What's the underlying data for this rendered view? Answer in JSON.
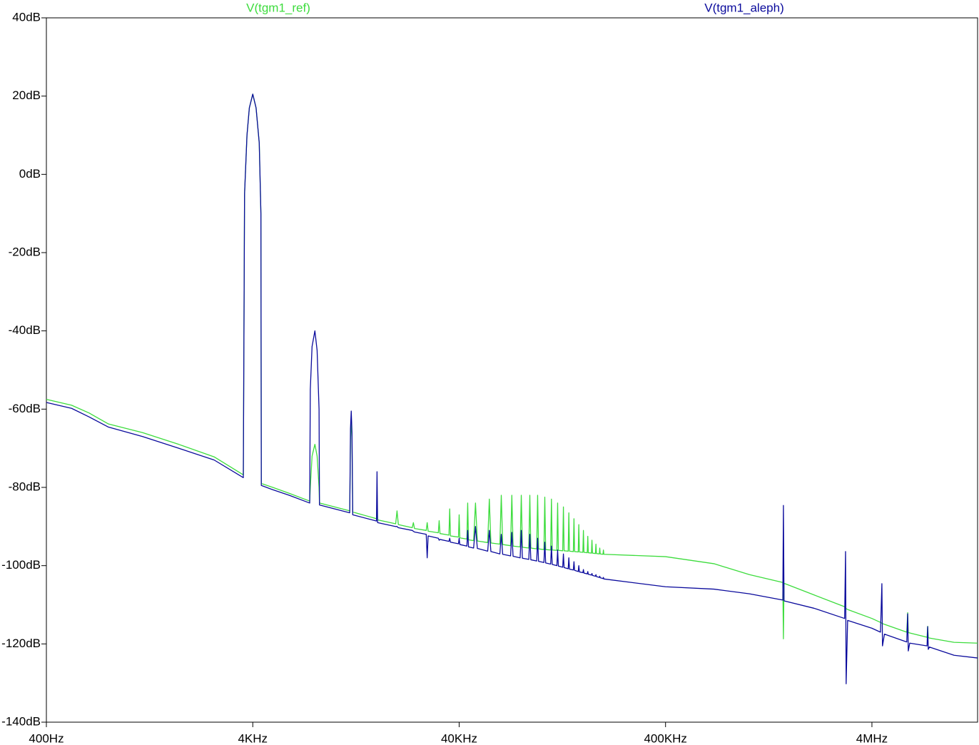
{
  "chart_data": {
    "type": "line",
    "xscale": "log",
    "xlim": [
      400,
      13000000
    ],
    "ylim": [
      -140,
      40
    ],
    "xticks": [
      {
        "value": 400,
        "label": "400Hz"
      },
      {
        "value": 4000,
        "label": "4KHz"
      },
      {
        "value": 40000,
        "label": "40KHz"
      },
      {
        "value": 400000,
        "label": "400KHz"
      },
      {
        "value": 4000000,
        "label": "4MHz"
      }
    ],
    "yticks": [
      {
        "value": 40,
        "label": "40dB"
      },
      {
        "value": 20,
        "label": "20dB"
      },
      {
        "value": 0,
        "label": "0dB"
      },
      {
        "value": -20,
        "label": "-20dB"
      },
      {
        "value": -40,
        "label": "-40dB"
      },
      {
        "value": -60,
        "label": "-60dB"
      },
      {
        "value": -80,
        "label": "-80dB"
      },
      {
        "value": -100,
        "label": "-100dB"
      },
      {
        "value": -120,
        "label": "-120dB"
      },
      {
        "value": -140,
        "label": "-140dB"
      }
    ],
    "grid": false,
    "x": [
      400,
      530,
      645,
      800,
      1170,
      1750,
      2600,
      3600,
      3650,
      3750,
      3850,
      4000,
      4150,
      4300,
      4380,
      4400,
      5000,
      6000,
      7550,
      7600,
      7750,
      8000,
      8200,
      8380,
      8420,
      11800,
      11900,
      12000,
      12100,
      12200,
      15900,
      16000,
      16100,
      19700,
      20000,
      20300,
      23700,
      24000,
      24300,
      27700,
      28000,
      28300,
      31700,
      32000,
      32300,
      35700,
      36000,
      36300,
      39700,
      40000,
      40300,
      43600,
      44000,
      44400,
      47000,
      48000,
      49000,
      55000,
      56000,
      57000,
      63000,
      64000,
      65000,
      71000,
      72000,
      73000,
      79000,
      80000,
      81000,
      87000,
      88000,
      89000,
      95000,
      96000,
      97000,
      103000,
      104000,
      105000,
      111000,
      112000,
      113000,
      119000,
      120000,
      121000,
      127000,
      128000,
      129000,
      135000,
      136000,
      137000,
      143000,
      144000,
      145000,
      151000,
      152000,
      153000,
      159000,
      160000,
      161000,
      167000,
      168000,
      169000,
      175000,
      176000,
      177000,
      183000,
      184000,
      185000,
      191000,
      192000,
      193000,
      199000,
      200000,
      201000,
      400000,
      686000,
      1020000,
      1480000,
      1490000,
      1500000,
      2100000,
      2950000,
      2980000,
      3000000,
      3050000,
      4000000,
      4400000,
      4470000,
      4500000,
      4600000,
      5900000,
      5960000,
      6000000,
      6100000,
      7400000,
      7450000,
      7500000,
      7600000,
      10000000,
      13000000
    ],
    "series": [
      {
        "name": "V(tgm1_ref)",
        "color": "#3ddc3d",
        "values": [
          -57.5,
          -59,
          -61,
          -63.8,
          -66,
          -69,
          -72.2,
          -76.8,
          -5,
          10,
          17,
          20.5,
          17,
          8,
          -10,
          -79,
          -80,
          -81.5,
          -83.5,
          -80,
          -72,
          -69,
          -72,
          -80,
          -84,
          -86,
          -68,
          -62,
          -68,
          -86.3,
          -88,
          -85,
          -88.3,
          -89.3,
          -86,
          -89.5,
          -90.3,
          -89,
          -90.5,
          -91,
          -89,
          -91.2,
          -91.6,
          -88.5,
          -91.8,
          -92.2,
          -85.5,
          -92.4,
          -92.7,
          -87,
          -92.9,
          -93.2,
          -84,
          -93.4,
          -93.6,
          -84,
          -93.7,
          -94.1,
          -83,
          -94.2,
          -94.5,
          -82,
          -94.6,
          -94.9,
          -82,
          -95,
          -95.2,
          -82,
          -95.3,
          -95.5,
          -82,
          -95.5,
          -95.7,
          -82,
          -95.7,
          -95.9,
          -82.5,
          -95.9,
          -96,
          -83,
          -96,
          -96.1,
          -84,
          -96.1,
          -96.2,
          -85,
          -96.2,
          -96.3,
          -86.5,
          -96.3,
          -96.4,
          -88,
          -96.4,
          -96.5,
          -89.5,
          -96.5,
          -96.6,
          -91,
          -96.6,
          -96.7,
          -92.5,
          -96.7,
          -96.8,
          -93.5,
          -96.8,
          -96.9,
          -94.5,
          -96.9,
          -97,
          -95.5,
          -97,
          -97.1,
          -96,
          -97.1,
          -97.7,
          -99.5,
          -102.3,
          -104.3,
          -118.7,
          -104.5,
          -107.5,
          -110.5,
          -111,
          -111,
          -111.2,
          -113.5,
          -114.5,
          -114.7,
          -114.8,
          -115,
          -117,
          -112,
          -117.1,
          -117.2,
          -118.3,
          -115.5,
          -118.4,
          -118.5,
          -119.6,
          -119.8
        ]
      },
      {
        "name": "V(tgm1_aleph)",
        "color": "#0a0a9c",
        "values": [
          -58.3,
          -59.8,
          -62,
          -64.6,
          -67,
          -70,
          -73,
          -77.5,
          -5,
          10,
          17,
          20.5,
          17,
          8,
          -10,
          -79.5,
          -80.6,
          -82,
          -84,
          -55,
          -44,
          -40,
          -45,
          -60,
          -84.5,
          -86.5,
          -65,
          -60.5,
          -66,
          -87,
          -88.6,
          -76,
          -89,
          -90,
          -90,
          -90.3,
          -91,
          -91.2,
          -91.4,
          -92,
          -98,
          -92.4,
          -93,
          -93.5,
          -93.3,
          -93.8,
          -93,
          -94,
          -94.4,
          -93,
          -94.6,
          -95,
          -91,
          -95.2,
          -95.5,
          -90,
          -95.6,
          -96.3,
          -91,
          -96.4,
          -97,
          -92,
          -97.1,
          -97.5,
          -91.5,
          -97.6,
          -98,
          -91,
          -98.1,
          -98.4,
          -92,
          -98.5,
          -98.8,
          -93,
          -98.9,
          -99.2,
          -94,
          -99.3,
          -99.6,
          -95,
          -99.7,
          -100,
          -96,
          -100.1,
          -100.4,
          -97,
          -100.5,
          -100.8,
          -98,
          -100.9,
          -101.1,
          -99,
          -101.2,
          -101.5,
          -100,
          -101.6,
          -101.8,
          -101,
          -101.9,
          -102.1,
          -101.5,
          -102.2,
          -102.4,
          -102,
          -102.5,
          -102.7,
          -102.3,
          -102.8,
          -103,
          -102.7,
          -103.1,
          -103.3,
          -103,
          -103.4,
          -105.4,
          -106,
          -107.2,
          -108.8,
          -84.6,
          -109,
          -110.9,
          -113.5,
          -96.4,
          -130.2,
          -114,
          -116,
          -117,
          -104.6,
          -120.5,
          -117.5,
          -119.5,
          -112.3,
          -121.8,
          -119.8,
          -120.5,
          -115.6,
          -121.4,
          -120.8,
          -122.9,
          -123.6
        ]
      }
    ]
  }
}
